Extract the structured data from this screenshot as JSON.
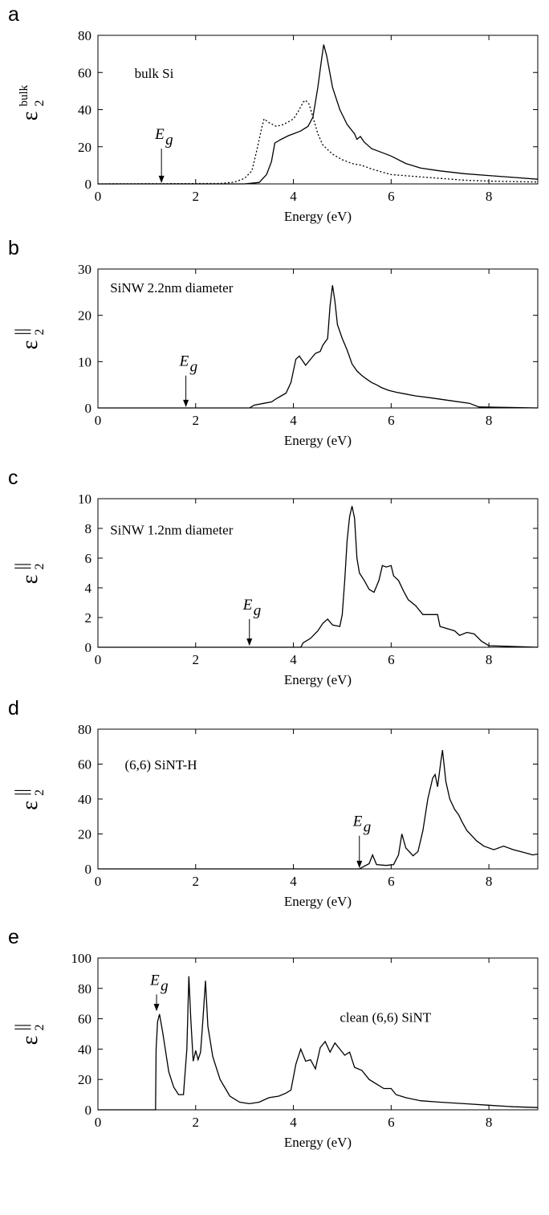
{
  "chart_data": [
    {
      "panel": "a",
      "type": "line",
      "xlabel": "Energy (eV)",
      "ylabel": {
        "base": "ε",
        "sub": "2",
        "sup": "bulk"
      },
      "xlim": [
        0,
        9
      ],
      "ylim": [
        0,
        80
      ],
      "xticks": [
        0,
        2,
        4,
        6,
        8
      ],
      "yticks": [
        0,
        20,
        40,
        60,
        80
      ],
      "annotations": [
        {
          "text": "bulk Si",
          "x": 0.75,
          "y": 57
        }
      ],
      "eg": {
        "label": "E",
        "sub": "g",
        "x": 1.3,
        "tip_y": 0.5,
        "top_y": 19
      },
      "series": [
        {
          "style": "solid",
          "points": [
            [
              0,
              0
            ],
            [
              3.0,
              0
            ],
            [
              3.3,
              0.8
            ],
            [
              3.45,
              5
            ],
            [
              3.55,
              12
            ],
            [
              3.62,
              22
            ],
            [
              3.75,
              24
            ],
            [
              3.9,
              26
            ],
            [
              4.0,
              27
            ],
            [
              4.15,
              28.5
            ],
            [
              4.3,
              31
            ],
            [
              4.4,
              36
            ],
            [
              4.5,
              52
            ],
            [
              4.57,
              66
            ],
            [
              4.62,
              75
            ],
            [
              4.68,
              69
            ],
            [
              4.8,
              52
            ],
            [
              4.95,
              40
            ],
            [
              5.1,
              32
            ],
            [
              5.25,
              27
            ],
            [
              5.3,
              24
            ],
            [
              5.37,
              25.5
            ],
            [
              5.45,
              22.5
            ],
            [
              5.6,
              19
            ],
            [
              5.8,
              17
            ],
            [
              6.0,
              15
            ],
            [
              6.3,
              11
            ],
            [
              6.6,
              8.5
            ],
            [
              7.0,
              7
            ],
            [
              7.5,
              5.5
            ],
            [
              8.0,
              4.5
            ],
            [
              8.5,
              3.5
            ],
            [
              9,
              2.5
            ]
          ]
        },
        {
          "style": "dotted",
          "points": [
            [
              0,
              0
            ],
            [
              2.5,
              0.2
            ],
            [
              2.8,
              1
            ],
            [
              3.0,
              3
            ],
            [
              3.15,
              7
            ],
            [
              3.25,
              18
            ],
            [
              3.35,
              30
            ],
            [
              3.4,
              35
            ],
            [
              3.5,
              33
            ],
            [
              3.65,
              31
            ],
            [
              3.8,
              32
            ],
            [
              4.0,
              35
            ],
            [
              4.1,
              39
            ],
            [
              4.2,
              44
            ],
            [
              4.25,
              45
            ],
            [
              4.32,
              43
            ],
            [
              4.4,
              36
            ],
            [
              4.5,
              27
            ],
            [
              4.6,
              21
            ],
            [
              4.8,
              16
            ],
            [
              5.0,
              13
            ],
            [
              5.2,
              11
            ],
            [
              5.4,
              10
            ],
            [
              5.6,
              8
            ],
            [
              5.8,
              6.5
            ],
            [
              6.0,
              5
            ],
            [
              6.5,
              4
            ],
            [
              7.0,
              3
            ],
            [
              7.5,
              2
            ],
            [
              8.0,
              1.5
            ],
            [
              9,
              1
            ]
          ]
        }
      ]
    },
    {
      "panel": "b",
      "type": "line",
      "xlabel": "Energy (eV)",
      "ylabel": {
        "base": "ε",
        "sub": "2",
        "sup": "||"
      },
      "xlim": [
        0,
        9
      ],
      "ylim": [
        0,
        30
      ],
      "xticks": [
        0,
        2,
        4,
        6,
        8
      ],
      "yticks": [
        0,
        10,
        20,
        30
      ],
      "annotations": [
        {
          "text": "SiNW 2.2nm diameter",
          "x": 0.25,
          "y": 25
        }
      ],
      "eg": {
        "label": "E",
        "sub": "g",
        "x": 1.8,
        "tip_y": 0.2,
        "top_y": 7
      },
      "series": [
        {
          "style": "solid",
          "points": [
            [
              0,
              0
            ],
            [
              3.1,
              0
            ],
            [
              3.2,
              0.6
            ],
            [
              3.4,
              1
            ],
            [
              3.55,
              1.3
            ],
            [
              3.65,
              2
            ],
            [
              3.75,
              2.6
            ],
            [
              3.85,
              3.2
            ],
            [
              3.95,
              5.5
            ],
            [
              4.05,
              10.5
            ],
            [
              4.12,
              11.2
            ],
            [
              4.2,
              10
            ],
            [
              4.25,
              9.2
            ],
            [
              4.35,
              10.5
            ],
            [
              4.45,
              11.8
            ],
            [
              4.55,
              12.2
            ],
            [
              4.6,
              13.5
            ],
            [
              4.7,
              15
            ],
            [
              4.75,
              22
            ],
            [
              4.8,
              26.5
            ],
            [
              4.85,
              23
            ],
            [
              4.9,
              18
            ],
            [
              5.0,
              15
            ],
            [
              5.1,
              12.5
            ],
            [
              5.2,
              9.5
            ],
            [
              5.3,
              8
            ],
            [
              5.4,
              7
            ],
            [
              5.5,
              6.2
            ],
            [
              5.6,
              5.5
            ],
            [
              5.7,
              5
            ],
            [
              5.8,
              4.4
            ],
            [
              5.95,
              3.8
            ],
            [
              6.1,
              3.4
            ],
            [
              6.3,
              3
            ],
            [
              6.5,
              2.6
            ],
            [
              6.8,
              2.2
            ],
            [
              7.2,
              1.6
            ],
            [
              7.6,
              1
            ],
            [
              7.8,
              0.2
            ],
            [
              9,
              0
            ]
          ]
        }
      ]
    },
    {
      "panel": "c",
      "type": "line",
      "xlabel": "Energy (eV)",
      "ylabel": {
        "base": "ε",
        "sub": "2",
        "sup": "||"
      },
      "xlim": [
        0,
        9
      ],
      "ylim": [
        0,
        10
      ],
      "xticks": [
        0,
        2,
        4,
        6,
        8
      ],
      "yticks": [
        0,
        2,
        4,
        6,
        8,
        10
      ],
      "annotations": [
        {
          "text": "SiNW 1.2nm diameter",
          "x": 0.25,
          "y": 7.6
        }
      ],
      "eg": {
        "label": "E",
        "sub": "g",
        "x": 3.1,
        "tip_y": 0.1,
        "top_y": 1.9
      },
      "series": [
        {
          "style": "solid",
          "points": [
            [
              0,
              0
            ],
            [
              4.15,
              0
            ],
            [
              4.2,
              0.3
            ],
            [
              4.35,
              0.6
            ],
            [
              4.5,
              1.1
            ],
            [
              4.6,
              1.6
            ],
            [
              4.7,
              1.9
            ],
            [
              4.8,
              1.5
            ],
            [
              4.95,
              1.4
            ],
            [
              5.0,
              2.2
            ],
            [
              5.05,
              4.5
            ],
            [
              5.1,
              7.2
            ],
            [
              5.15,
              8.8
            ],
            [
              5.2,
              9.5
            ],
            [
              5.25,
              8.7
            ],
            [
              5.3,
              6
            ],
            [
              5.35,
              5
            ],
            [
              5.45,
              4.5
            ],
            [
              5.55,
              3.9
            ],
            [
              5.65,
              3.7
            ],
            [
              5.75,
              4.5
            ],
            [
              5.82,
              5.5
            ],
            [
              5.9,
              5.4
            ],
            [
              6.0,
              5.5
            ],
            [
              6.05,
              4.8
            ],
            [
              6.15,
              4.5
            ],
            [
              6.25,
              3.8
            ],
            [
              6.35,
              3.2
            ],
            [
              6.5,
              2.8
            ],
            [
              6.65,
              2.2
            ],
            [
              6.95,
              2.2
            ],
            [
              7.0,
              1.4
            ],
            [
              7.3,
              1.1
            ],
            [
              7.4,
              0.8
            ],
            [
              7.55,
              1
            ],
            [
              7.7,
              0.9
            ],
            [
              7.85,
              0.4
            ],
            [
              8.0,
              0.1
            ],
            [
              9,
              0
            ]
          ]
        }
      ]
    },
    {
      "panel": "d",
      "type": "line",
      "xlabel": "Energy (eV)",
      "ylabel": {
        "base": "ε",
        "sub": "2",
        "sup": "||"
      },
      "xlim": [
        0,
        9
      ],
      "ylim": [
        0,
        80
      ],
      "xticks": [
        0,
        2,
        4,
        6,
        8
      ],
      "yticks": [
        0,
        20,
        40,
        60,
        80
      ],
      "annotations": [
        {
          "text": "(6,6) SiNT-H",
          "x": 0.55,
          "y": 57
        }
      ],
      "eg": {
        "label": "E",
        "sub": "g",
        "x": 5.35,
        "tip_y": 0.5,
        "top_y": 19
      },
      "series": [
        {
          "style": "solid",
          "points": [
            [
              0,
              0
            ],
            [
              5.35,
              0
            ],
            [
              5.45,
              1.5
            ],
            [
              5.55,
              3
            ],
            [
              5.62,
              8
            ],
            [
              5.7,
              2.5
            ],
            [
              5.9,
              2
            ],
            [
              6.05,
              2.5
            ],
            [
              6.15,
              8
            ],
            [
              6.22,
              20
            ],
            [
              6.3,
              12
            ],
            [
              6.45,
              7.5
            ],
            [
              6.55,
              10
            ],
            [
              6.65,
              22
            ],
            [
              6.75,
              40
            ],
            [
              6.85,
              52
            ],
            [
              6.9,
              54
            ],
            [
              6.95,
              47
            ],
            [
              7.02,
              62
            ],
            [
              7.05,
              68
            ],
            [
              7.12,
              50
            ],
            [
              7.2,
              40
            ],
            [
              7.3,
              34
            ],
            [
              7.38,
              31
            ],
            [
              7.45,
              27
            ],
            [
              7.55,
              22
            ],
            [
              7.65,
              19
            ],
            [
              7.75,
              16
            ],
            [
              7.9,
              13
            ],
            [
              8.1,
              11
            ],
            [
              8.3,
              13
            ],
            [
              8.5,
              11
            ],
            [
              8.7,
              9.5
            ],
            [
              8.9,
              8
            ],
            [
              9,
              8.5
            ]
          ]
        }
      ]
    },
    {
      "panel": "e",
      "type": "line",
      "xlabel": "Energy (eV)",
      "ylabel": {
        "base": "ε",
        "sub": "2",
        "sup": "||"
      },
      "xlim": [
        0,
        9
      ],
      "ylim": [
        0,
        100
      ],
      "xticks": [
        0,
        2,
        4,
        6,
        8
      ],
      "yticks": [
        0,
        20,
        40,
        60,
        80,
        100
      ],
      "annotations": [
        {
          "text": "clean (6,6) SiNT",
          "x": 4.95,
          "y": 58
        }
      ],
      "eg": {
        "label": "E",
        "sub": "g",
        "x": 1.2,
        "tip_y": 65,
        "top_y": 76
      },
      "series": [
        {
          "style": "solid",
          "points": [
            [
              0,
              0
            ],
            [
              1.18,
              0
            ],
            [
              1.19,
              40
            ],
            [
              1.22,
              58
            ],
            [
              1.26,
              63
            ],
            [
              1.32,
              52
            ],
            [
              1.45,
              25
            ],
            [
              1.55,
              15
            ],
            [
              1.65,
              10
            ],
            [
              1.75,
              10
            ],
            [
              1.82,
              40
            ],
            [
              1.86,
              88
            ],
            [
              1.9,
              60
            ],
            [
              1.95,
              32
            ],
            [
              2.0,
              39
            ],
            [
              2.05,
              33
            ],
            [
              2.1,
              38
            ],
            [
              2.15,
              60
            ],
            [
              2.2,
              85
            ],
            [
              2.25,
              55
            ],
            [
              2.35,
              35
            ],
            [
              2.5,
              20
            ],
            [
              2.7,
              9
            ],
            [
              2.9,
              5
            ],
            [
              3.1,
              4
            ],
            [
              3.3,
              5
            ],
            [
              3.5,
              8
            ],
            [
              3.7,
              9
            ],
            [
              3.85,
              11
            ],
            [
              3.95,
              13
            ],
            [
              4.05,
              30
            ],
            [
              4.15,
              40
            ],
            [
              4.25,
              32
            ],
            [
              4.35,
              33
            ],
            [
              4.45,
              27
            ],
            [
              4.55,
              41
            ],
            [
              4.65,
              45
            ],
            [
              4.75,
              38
            ],
            [
              4.85,
              44
            ],
            [
              4.95,
              40
            ],
            [
              5.05,
              36
            ],
            [
              5.15,
              38
            ],
            [
              5.25,
              28
            ],
            [
              5.4,
              26
            ],
            [
              5.55,
              20
            ],
            [
              5.7,
              17
            ],
            [
              5.85,
              14
            ],
            [
              6.0,
              14
            ],
            [
              6.1,
              10
            ],
            [
              6.3,
              8
            ],
            [
              6.6,
              6
            ],
            [
              7.0,
              5
            ],
            [
              7.5,
              4
            ],
            [
              8.0,
              3
            ],
            [
              8.5,
              2
            ],
            [
              9,
              1.5
            ]
          ]
        }
      ]
    }
  ]
}
